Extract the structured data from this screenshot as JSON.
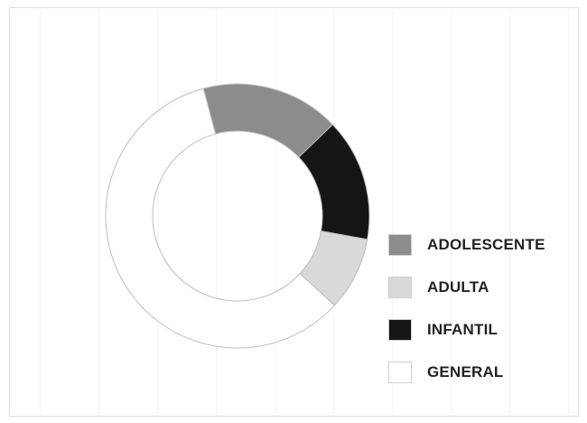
{
  "colors": {
    "adolescente": "#8c8c8c",
    "adulta": "#d9d9d9",
    "infantil": "#151515",
    "general": "#ffffff",
    "slice_stroke": "#bdbdbd",
    "legend_swatch_stroke": "#cfcfcf"
  },
  "chart_data": {
    "type": "pie",
    "style": "donut",
    "start_angle_deg": 345,
    "clockwise": true,
    "grid": true,
    "legend": "right",
    "slices": [
      {
        "label": "ADOLESCENTE",
        "value": 17,
        "color": "#8c8c8c"
      },
      {
        "label": "INFANTIL",
        "value": 15,
        "color": "#151515"
      },
      {
        "label": "ADULTA",
        "value": 9,
        "color": "#d9d9d9"
      },
      {
        "label": "GENERAL",
        "value": 59,
        "color": "#ffffff"
      }
    ]
  },
  "legend": {
    "items": [
      {
        "label": "ADOLESCENTE",
        "color": "#8c8c8c"
      },
      {
        "label": "ADULTA",
        "color": "#d9d9d9"
      },
      {
        "label": "INFANTIL",
        "color": "#151515"
      },
      {
        "label": "GENERAL",
        "color": "#ffffff"
      }
    ]
  }
}
